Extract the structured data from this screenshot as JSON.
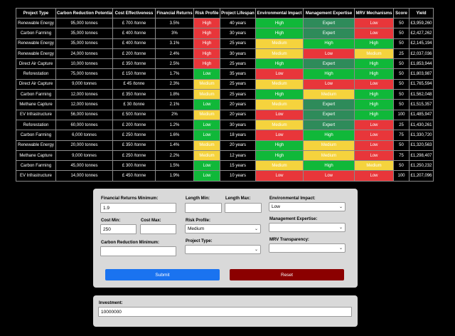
{
  "table": {
    "headers": [
      "Project Type",
      "Carbon Reduction Potential",
      "Cost Effectiveness",
      "Financial Returns",
      "Risk Profile",
      "Project Lifespan",
      "Environmental Impact",
      "Management Expertise",
      "MRV Mechanisms",
      "Score",
      "Yield"
    ],
    "rows": [
      [
        "Renewable Energy",
        "95,000 tonnes",
        "£ 700 /tonne",
        "3.5%",
        "High",
        "40 years",
        "High",
        "Expert",
        "Low",
        "50",
        "£3,959,260"
      ],
      [
        "Carbon Farming",
        "35,000 tonnes",
        "£ 400 /tonne",
        "3%",
        "High",
        "30 years",
        "High",
        "Expert",
        "Low",
        "50",
        "£2,427,262"
      ],
      [
        "Renewable Energy",
        "35,000 tonnes",
        "£ 400 /tonne",
        "3.1%",
        "High",
        "25 years",
        "Medium",
        "High",
        "High",
        "50",
        "£2,145,194"
      ],
      [
        "Renewable Energy",
        "24,000 tonnes",
        "£ 200 /tonne",
        "2.4%",
        "High",
        "30 years",
        "Medium",
        "Low",
        "Medium",
        "25",
        "£2,037,036"
      ],
      [
        "Direct Air Capture",
        "10,000 tonnes",
        "£ 350 /tonne",
        "2.5%",
        "High",
        "25 years",
        "High",
        "Expert",
        "High",
        "50",
        "£1,853,944"
      ],
      [
        "Reforestation",
        "75,000 tonnes",
        "£ 150 /tonne",
        "1.7%",
        "Low",
        "35 years",
        "Low",
        "High",
        "High",
        "50",
        "£1,803,987"
      ],
      [
        "Direct Air Capture",
        "9,000 tonnes",
        "£ 45 /tonne",
        "2.3%",
        "Medium",
        "25 years",
        "Medium",
        "Low",
        "Low",
        "50",
        "£1,765,594"
      ],
      [
        "Carbon Farming",
        "12,000 tonnes",
        "£ 350 /tonne",
        "1.8%",
        "Medium",
        "25 years",
        "High",
        "Medium",
        "High",
        "50",
        "£1,562,048"
      ],
      [
        "Methane Capture",
        "12,000 tonnes",
        "£ 30 /tonne",
        "2.1%",
        "Low",
        "20 years",
        "Medium",
        "Expert",
        "High",
        "50",
        "£1,515,357"
      ],
      [
        "EV Infrastructure",
        "56,000 tonnes",
        "£ 500 /tonne",
        "2%",
        "Medium",
        "20 years",
        "Low",
        "Expert",
        "High",
        "100",
        "£1,485,947"
      ],
      [
        "Reforestation",
        "60,000 tonnes",
        "£ 200 /tonne",
        "1.2%",
        "Low",
        "30 years",
        "Medium",
        "Expert",
        "Low",
        "25",
        "£1,430,261"
      ],
      [
        "Carbon Farming",
        "6,000 tonnes",
        "£ 250 /tonne",
        "1.6%",
        "Low",
        "18 years",
        "Low",
        "High",
        "Low",
        "75",
        "£1,330,720"
      ],
      [
        "Renewable Energy",
        "20,000 tonnes",
        "£ 350 /tonne",
        "1.4%",
        "Medium",
        "20 years",
        "High",
        "Medium",
        "Low",
        "50",
        "£1,320,563"
      ],
      [
        "Methane Capture",
        "9,000 tonnes",
        "£ 250 /tonne",
        "2.2%",
        "Medium",
        "12 years",
        "High",
        "Medium",
        "Low",
        "75",
        "£1,298,407"
      ],
      [
        "Carbon Farming",
        "45,000 tonnes",
        "£ 300 /tonne",
        "1.5%",
        "Low",
        "15 years",
        "Medium",
        "High",
        "Medium",
        "50",
        "£1,250,232"
      ],
      [
        "EV Infrastructure",
        "14,000 tonnes",
        "£ 450 /tonne",
        "1.9%",
        "Low",
        "10 years",
        "Low",
        "Low",
        "Low",
        "100",
        "£1,207,096"
      ]
    ],
    "colors": {
      "red": "#e8363a",
      "green": "#10b839",
      "yellow": "#f5d33d",
      "teal": "#2e8b5a"
    },
    "cell_colors": {
      "risk": {
        "High": "red",
        "Medium": "yellow",
        "Low": "green"
      },
      "environment": {
        "High": "green",
        "Medium": "yellow",
        "Low": "red"
      },
      "expertise": {
        "Expert": "teal",
        "High": "green",
        "Medium": "yellow",
        "Low": "red"
      },
      "mrv": {
        "High": "green",
        "Medium": "yellow",
        "Low": "red"
      }
    }
  },
  "form": {
    "financial_returns_min": {
      "label": "Financial Returns Minimum:",
      "value": "1.9"
    },
    "length_min": {
      "label": "Length Min:",
      "value": ""
    },
    "length_max": {
      "label": "Length Max:",
      "value": ""
    },
    "environmental_impact": {
      "label": "Environmental Impact:",
      "value": "Low"
    },
    "cost_min": {
      "label": "Cost Min:",
      "value": "250"
    },
    "cost_max": {
      "label": "Cost Max:",
      "value": ""
    },
    "risk_profile": {
      "label": "Risk Profile:",
      "value": "Medium"
    },
    "management_expertise": {
      "label": "Management Expertise:",
      "value": ""
    },
    "carbon_reduction_min": {
      "label": "Carbon Reduction Minimum:",
      "value": ""
    },
    "project_type": {
      "label": "Project Type:",
      "value": ""
    },
    "mrv_transparency": {
      "label": "MRV Transparency:",
      "value": ""
    },
    "submit_label": "Submit",
    "reset_label": "Reset"
  },
  "investment": {
    "label": "Investment:",
    "value": "10000000"
  }
}
